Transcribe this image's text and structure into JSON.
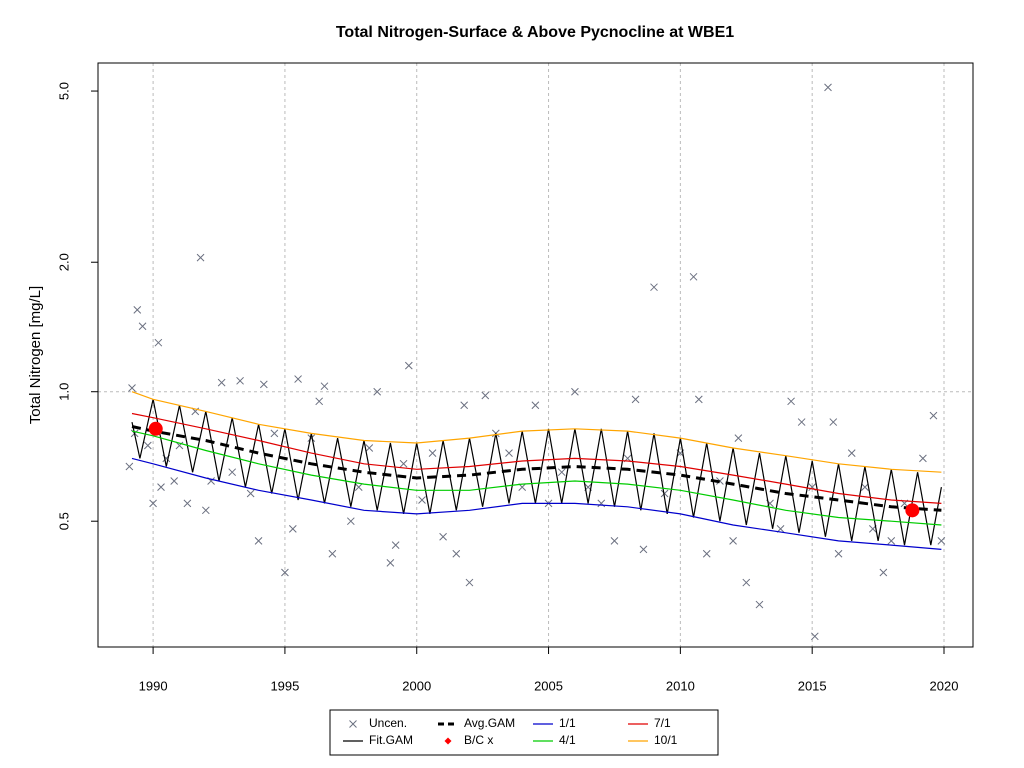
{
  "chart_data": {
    "type": "line",
    "title": "Total Nitrogen-Surface & Above Pycnocline at WBE1",
    "y_label": "Total Nitrogen [mg/L]",
    "log_y": true,
    "xlim": [
      1987.91,
      2021.1
    ],
    "ylim": [
      0.255,
      5.81
    ],
    "xticks": [
      1990,
      1995,
      2000,
      2005,
      2010,
      2015,
      2020
    ],
    "yticks": [
      0.5,
      {
        "value": 1,
        "label": "1.0"
      },
      {
        "value": 2,
        "label": "2.0"
      },
      {
        "value": 5,
        "label": "5.0"
      }
    ],
    "grid_x": true,
    "hline": 1,
    "series": [
      {
        "name": "Uncen.",
        "color": "#6b7080",
        "mark": "x",
        "x": [
          1989.1,
          1989.2,
          1989.3,
          1989.4,
          1989.6,
          1989.8,
          1990.0,
          1990.2,
          1990.3,
          1990.5,
          1990.8,
          1991.0,
          1991.3,
          1991.6,
          1991.8,
          1992.0,
          1992.2,
          1992.6,
          1993.0,
          1993.3,
          1993.7,
          1994.0,
          1994.2,
          1994.6,
          1995.0,
          1995.3,
          1995.5,
          1996.0,
          1996.3,
          1996.5,
          1996.8,
          1997.5,
          1997.8,
          1998.2,
          1998.5,
          1999.0,
          1999.2,
          1999.5,
          1999.7,
          2000.2,
          2000.6,
          2001.0,
          2001.5,
          2001.8,
          2002.0,
          2002.6,
          2003.0,
          2003.5,
          2004.0,
          2004.5,
          2005.0,
          2005.5,
          2006.0,
          2006.5,
          2007.0,
          2007.5,
          2008.0,
          2008.3,
          2008.6,
          2009.0,
          2009.4,
          2010.0,
          2010.5,
          2010.7,
          2011.0,
          2011.5,
          2012.0,
          2012.2,
          2012.5,
          2013.0,
          2013.4,
          2013.8,
          2014.2,
          2014.6,
          2015.0,
          2015.1,
          2015.6,
          2015.8,
          2016.0,
          2016.5,
          2017.0,
          2017.3,
          2017.7,
          2018.0,
          2018.5,
          2019.2,
          2019.6,
          2019.9
        ],
        "values": [
          0.67,
          1.02,
          0.8,
          1.55,
          1.42,
          0.75,
          0.55,
          1.3,
          0.6,
          0.7,
          0.62,
          0.75,
          0.55,
          0.9,
          2.05,
          0.53,
          0.62,
          1.05,
          0.65,
          1.06,
          0.58,
          0.45,
          1.04,
          0.8,
          0.38,
          0.48,
          1.07,
          0.78,
          0.95,
          1.03,
          0.42,
          0.5,
          0.6,
          0.74,
          1.0,
          0.4,
          0.44,
          0.68,
          1.15,
          0.56,
          0.72,
          0.46,
          0.42,
          0.93,
          0.36,
          0.98,
          0.8,
          0.72,
          0.6,
          0.93,
          0.55,
          0.65,
          1.0,
          0.6,
          0.55,
          0.45,
          0.7,
          0.96,
          0.43,
          1.75,
          0.58,
          0.72,
          1.85,
          0.96,
          0.42,
          0.62,
          0.45,
          0.78,
          0.36,
          0.32,
          0.55,
          0.48,
          0.95,
          0.85,
          0.6,
          0.27,
          5.1,
          0.85,
          0.42,
          0.72,
          0.6,
          0.48,
          0.38,
          0.45,
          0.55,
          0.7,
          0.88,
          0.45
        ]
      },
      {
        "name": "Fit.GAM",
        "color": "#000000",
        "mark": "line",
        "x": [
          1989.2,
          1989.5,
          1990,
          1990.5,
          1991,
          1991.5,
          1992,
          1992.5,
          1993,
          1993.5,
          1994,
          1994.5,
          1995,
          1995.5,
          1996,
          1996.5,
          1997,
          1997.5,
          1998,
          1998.5,
          1999,
          1999.5,
          2000,
          2000.5,
          2001,
          2001.5,
          2002,
          2002.5,
          2003,
          2003.5,
          2004,
          2004.5,
          2005,
          2005.5,
          2006,
          2006.5,
          2007,
          2007.5,
          2008,
          2008.5,
          2009,
          2009.5,
          2010,
          2010.5,
          2011,
          2011.5,
          2012,
          2012.5,
          2013,
          2013.5,
          2014,
          2014.5,
          2015,
          2015.5,
          2016,
          2016.5,
          2017,
          2017.5,
          2018,
          2018.5,
          2019,
          2019.5,
          2019.9
        ],
        "values": [
          0.85,
          0.7,
          0.96,
          0.67,
          0.93,
          0.65,
          0.9,
          0.62,
          0.87,
          0.6,
          0.84,
          0.58,
          0.82,
          0.56,
          0.8,
          0.55,
          0.78,
          0.54,
          0.77,
          0.53,
          0.76,
          0.52,
          0.76,
          0.52,
          0.77,
          0.53,
          0.78,
          0.54,
          0.8,
          0.55,
          0.81,
          0.55,
          0.82,
          0.55,
          0.82,
          0.55,
          0.82,
          0.54,
          0.81,
          0.53,
          0.8,
          0.52,
          0.78,
          0.51,
          0.76,
          0.5,
          0.74,
          0.49,
          0.72,
          0.48,
          0.71,
          0.47,
          0.69,
          0.46,
          0.68,
          0.45,
          0.67,
          0.45,
          0.66,
          0.44,
          0.65,
          0.44,
          0.6
        ]
      },
      {
        "name": "Avg.GAM",
        "color": "#000000",
        "mark": "dashed",
        "x": [
          1989.2,
          1990,
          1992,
          1994,
          1996,
          1998,
          2000,
          2002,
          2004,
          2006,
          2008,
          2010,
          2012,
          2014,
          2016,
          2018,
          2019.9
        ],
        "values": [
          0.83,
          0.81,
          0.77,
          0.72,
          0.68,
          0.65,
          0.63,
          0.64,
          0.66,
          0.67,
          0.66,
          0.64,
          0.61,
          0.58,
          0.56,
          0.54,
          0.53
        ]
      },
      {
        "name": "B/C x",
        "color": "#ff0000",
        "mark": "dot",
        "x": [
          1990.1,
          2018.8
        ],
        "values": [
          0.82,
          0.53
        ]
      },
      {
        "name": "1/1",
        "color": "#0000cc",
        "mark": "line",
        "x": [
          1989.2,
          1990,
          1992,
          1994,
          1996,
          1998,
          2000,
          2002,
          2004,
          2006,
          2008,
          2010,
          2012,
          2014,
          2016,
          2018,
          2019.9
        ],
        "values": [
          0.7,
          0.68,
          0.63,
          0.59,
          0.56,
          0.53,
          0.52,
          0.53,
          0.55,
          0.55,
          0.54,
          0.52,
          0.49,
          0.47,
          0.45,
          0.44,
          0.43
        ]
      },
      {
        "name": "4/1",
        "color": "#00cc00",
        "mark": "line",
        "x": [
          1989.2,
          1990,
          1992,
          1994,
          1996,
          1998,
          2000,
          2002,
          2004,
          2006,
          2008,
          2010,
          2012,
          2014,
          2016,
          2018,
          2019.9
        ],
        "values": [
          0.81,
          0.79,
          0.73,
          0.68,
          0.64,
          0.61,
          0.59,
          0.59,
          0.61,
          0.62,
          0.61,
          0.59,
          0.56,
          0.53,
          0.51,
          0.5,
          0.49
        ]
      },
      {
        "name": "7/1",
        "color": "#e00000",
        "mark": "line",
        "x": [
          1989.2,
          1990,
          1992,
          1994,
          1996,
          1998,
          2000,
          2002,
          2004,
          2006,
          2008,
          2010,
          2012,
          2014,
          2016,
          2018,
          2019.9
        ],
        "values": [
          0.89,
          0.87,
          0.82,
          0.77,
          0.72,
          0.68,
          0.66,
          0.67,
          0.69,
          0.7,
          0.69,
          0.67,
          0.64,
          0.61,
          0.58,
          0.56,
          0.55
        ]
      },
      {
        "name": "10/1",
        "color": "#ffa500",
        "mark": "line",
        "x": [
          1989.2,
          1990,
          1992,
          1994,
          1996,
          1998,
          2000,
          2002,
          2004,
          2006,
          2008,
          2010,
          2012,
          2014,
          2016,
          2018,
          2019.9
        ],
        "values": [
          1.0,
          0.96,
          0.9,
          0.84,
          0.8,
          0.77,
          0.76,
          0.78,
          0.81,
          0.82,
          0.81,
          0.78,
          0.74,
          0.71,
          0.68,
          0.66,
          0.65
        ]
      }
    ]
  }
}
